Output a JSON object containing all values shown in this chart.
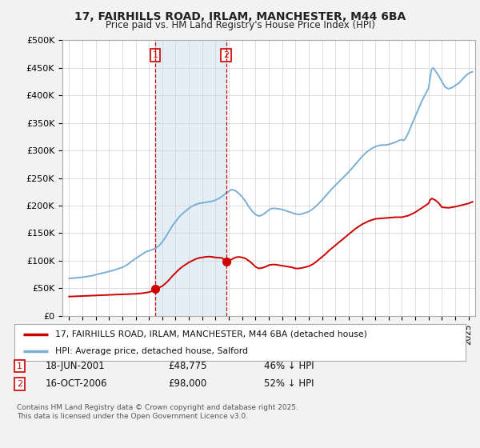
{
  "title1": "17, FAIRHILLS ROAD, IRLAM, MANCHESTER, M44 6BA",
  "title2": "Price paid vs. HM Land Registry's House Price Index (HPI)",
  "ylabel_ticks": [
    "£0",
    "£50K",
    "£100K",
    "£150K",
    "£200K",
    "£250K",
    "£300K",
    "£350K",
    "£400K",
    "£450K",
    "£500K"
  ],
  "ytick_vals": [
    0,
    50000,
    100000,
    150000,
    200000,
    250000,
    300000,
    350000,
    400000,
    450000,
    500000
  ],
  "ylim": [
    0,
    500000
  ],
  "xlim_start": 1994.5,
  "xlim_end": 2025.5,
  "property_color": "#cc0000",
  "hpi_color": "#7ab0d4",
  "shade_color": "#d8e8f5",
  "transaction1_x": 2001.46,
  "transaction1_y": 48775,
  "transaction2_x": 2006.79,
  "transaction2_y": 98000,
  "legend_property": "17, FAIRHILLS ROAD, IRLAM, MANCHESTER, M44 6BA (detached house)",
  "legend_hpi": "HPI: Average price, detached house, Salford",
  "copyright": "Contains HM Land Registry data © Crown copyright and database right 2025.\nThis data is licensed under the Open Government Licence v3.0.",
  "background_color": "#f2f2f2",
  "plot_bg_color": "#ffffff",
  "hpi_data": [
    [
      1995.0,
      68000
    ],
    [
      1995.1,
      68200
    ],
    [
      1995.2,
      68300
    ],
    [
      1995.3,
      68400
    ],
    [
      1995.5,
      69000
    ],
    [
      1995.75,
      69500
    ],
    [
      1996.0,
      70000
    ],
    [
      1996.25,
      71000
    ],
    [
      1996.5,
      72000
    ],
    [
      1996.75,
      73000
    ],
    [
      1997.0,
      74500
    ],
    [
      1997.25,
      76000
    ],
    [
      1997.5,
      77500
    ],
    [
      1997.75,
      79000
    ],
    [
      1998.0,
      80500
    ],
    [
      1998.25,
      82000
    ],
    [
      1998.5,
      84000
    ],
    [
      1998.75,
      86000
    ],
    [
      1999.0,
      88000
    ],
    [
      1999.25,
      91000
    ],
    [
      1999.5,
      95000
    ],
    [
      1999.75,
      100000
    ],
    [
      2000.0,
      104000
    ],
    [
      2000.25,
      108000
    ],
    [
      2000.5,
      112000
    ],
    [
      2000.75,
      116000
    ],
    [
      2001.0,
      118000
    ],
    [
      2001.25,
      120000
    ],
    [
      2001.5,
      123000
    ],
    [
      2001.75,
      127000
    ],
    [
      2002.0,
      134000
    ],
    [
      2002.25,
      143000
    ],
    [
      2002.5,
      153000
    ],
    [
      2002.75,
      163000
    ],
    [
      2003.0,
      171000
    ],
    [
      2003.25,
      179000
    ],
    [
      2003.5,
      185000
    ],
    [
      2003.75,
      190000
    ],
    [
      2004.0,
      195000
    ],
    [
      2004.25,
      199000
    ],
    [
      2004.5,
      202000
    ],
    [
      2004.75,
      204000
    ],
    [
      2005.0,
      205000
    ],
    [
      2005.25,
      206000
    ],
    [
      2005.5,
      207000
    ],
    [
      2005.75,
      208000
    ],
    [
      2006.0,
      210000
    ],
    [
      2006.25,
      213000
    ],
    [
      2006.5,
      217000
    ],
    [
      2006.75,
      222000
    ],
    [
      2007.0,
      226000
    ],
    [
      2007.1,
      228000
    ],
    [
      2007.25,
      229000
    ],
    [
      2007.5,
      227000
    ],
    [
      2007.75,
      222000
    ],
    [
      2008.0,
      216000
    ],
    [
      2008.25,
      208000
    ],
    [
      2008.5,
      198000
    ],
    [
      2008.75,
      190000
    ],
    [
      2009.0,
      184000
    ],
    [
      2009.25,
      181000
    ],
    [
      2009.5,
      183000
    ],
    [
      2009.75,
      187000
    ],
    [
      2010.0,
      192000
    ],
    [
      2010.25,
      195000
    ],
    [
      2010.5,
      195000
    ],
    [
      2010.75,
      194000
    ],
    [
      2011.0,
      193000
    ],
    [
      2011.25,
      191000
    ],
    [
      2011.5,
      189000
    ],
    [
      2011.75,
      187000
    ],
    [
      2012.0,
      185000
    ],
    [
      2012.25,
      184000
    ],
    [
      2012.5,
      185000
    ],
    [
      2012.75,
      187000
    ],
    [
      2013.0,
      189000
    ],
    [
      2013.25,
      193000
    ],
    [
      2013.5,
      198000
    ],
    [
      2013.75,
      204000
    ],
    [
      2014.0,
      210000
    ],
    [
      2014.25,
      217000
    ],
    [
      2014.5,
      224000
    ],
    [
      2014.75,
      231000
    ],
    [
      2015.0,
      237000
    ],
    [
      2015.25,
      243000
    ],
    [
      2015.5,
      249000
    ],
    [
      2015.75,
      255000
    ],
    [
      2016.0,
      261000
    ],
    [
      2016.25,
      268000
    ],
    [
      2016.5,
      275000
    ],
    [
      2016.75,
      282000
    ],
    [
      2017.0,
      289000
    ],
    [
      2017.25,
      295000
    ],
    [
      2017.5,
      300000
    ],
    [
      2017.75,
      304000
    ],
    [
      2018.0,
      307000
    ],
    [
      2018.25,
      309000
    ],
    [
      2018.5,
      310000
    ],
    [
      2018.75,
      310000
    ],
    [
      2019.0,
      311000
    ],
    [
      2019.25,
      313000
    ],
    [
      2019.5,
      315000
    ],
    [
      2019.75,
      318000
    ],
    [
      2020.0,
      320000
    ],
    [
      2020.1,
      318000
    ],
    [
      2020.25,
      321000
    ],
    [
      2020.5,
      333000
    ],
    [
      2020.75,
      348000
    ],
    [
      2021.0,
      362000
    ],
    [
      2021.25,
      376000
    ],
    [
      2021.5,
      390000
    ],
    [
      2021.75,
      402000
    ],
    [
      2022.0,
      413000
    ],
    [
      2022.1,
      430000
    ],
    [
      2022.2,
      445000
    ],
    [
      2022.25,
      448000
    ],
    [
      2022.35,
      450000
    ],
    [
      2022.5,
      445000
    ],
    [
      2022.75,
      436000
    ],
    [
      2023.0,
      425000
    ],
    [
      2023.25,
      415000
    ],
    [
      2023.5,
      412000
    ],
    [
      2023.75,
      414000
    ],
    [
      2024.0,
      418000
    ],
    [
      2024.25,
      422000
    ],
    [
      2024.5,
      428000
    ],
    [
      2024.75,
      435000
    ],
    [
      2025.0,
      440000
    ],
    [
      2025.3,
      443000
    ]
  ],
  "property_data": [
    [
      1995.0,
      35000
    ],
    [
      1995.5,
      35500
    ],
    [
      1996.0,
      36000
    ],
    [
      1996.5,
      36500
    ],
    [
      1997.0,
      37000
    ],
    [
      1997.5,
      37500
    ],
    [
      1998.0,
      38000
    ],
    [
      1998.5,
      38500
    ],
    [
      1999.0,
      39000
    ],
    [
      1999.5,
      39500
    ],
    [
      2000.0,
      40000
    ],
    [
      2000.25,
      40500
    ],
    [
      2000.5,
      41000
    ],
    [
      2000.75,
      42000
    ],
    [
      2001.0,
      43000
    ],
    [
      2001.25,
      45000
    ],
    [
      2001.46,
      48775
    ],
    [
      2001.5,
      49500
    ],
    [
      2001.75,
      51000
    ],
    [
      2002.0,
      54000
    ],
    [
      2002.25,
      59000
    ],
    [
      2002.5,
      65000
    ],
    [
      2002.75,
      72000
    ],
    [
      2003.0,
      78000
    ],
    [
      2003.25,
      84000
    ],
    [
      2003.5,
      89000
    ],
    [
      2003.75,
      93000
    ],
    [
      2004.0,
      97000
    ],
    [
      2004.25,
      100000
    ],
    [
      2004.5,
      103000
    ],
    [
      2004.75,
      105000
    ],
    [
      2005.0,
      106000
    ],
    [
      2005.25,
      107000
    ],
    [
      2005.5,
      107500
    ],
    [
      2005.75,
      107000
    ],
    [
      2006.0,
      106000
    ],
    [
      2006.25,
      105500
    ],
    [
      2006.5,
      105000
    ],
    [
      2006.79,
      98000
    ],
    [
      2007.0,
      100000
    ],
    [
      2007.25,
      103000
    ],
    [
      2007.5,
      106000
    ],
    [
      2007.75,
      107000
    ],
    [
      2008.0,
      106000
    ],
    [
      2008.25,
      104000
    ],
    [
      2008.5,
      100000
    ],
    [
      2008.75,
      95000
    ],
    [
      2009.0,
      89000
    ],
    [
      2009.25,
      86000
    ],
    [
      2009.5,
      87000
    ],
    [
      2009.75,
      89000
    ],
    [
      2010.0,
      92000
    ],
    [
      2010.25,
      93000
    ],
    [
      2010.5,
      93000
    ],
    [
      2010.75,
      92000
    ],
    [
      2011.0,
      91000
    ],
    [
      2011.25,
      90000
    ],
    [
      2011.5,
      89000
    ],
    [
      2011.75,
      88000
    ],
    [
      2012.0,
      86000
    ],
    [
      2012.25,
      86000
    ],
    [
      2012.5,
      87000
    ],
    [
      2012.75,
      88500
    ],
    [
      2013.0,
      90000
    ],
    [
      2013.25,
      93000
    ],
    [
      2013.5,
      97000
    ],
    [
      2013.75,
      102000
    ],
    [
      2014.0,
      107000
    ],
    [
      2014.25,
      112000
    ],
    [
      2014.5,
      118000
    ],
    [
      2014.75,
      123000
    ],
    [
      2015.0,
      128000
    ],
    [
      2015.25,
      133000
    ],
    [
      2015.5,
      138000
    ],
    [
      2015.75,
      143000
    ],
    [
      2016.0,
      148000
    ],
    [
      2016.25,
      153000
    ],
    [
      2016.5,
      158000
    ],
    [
      2016.75,
      162000
    ],
    [
      2017.0,
      166000
    ],
    [
      2017.25,
      169000
    ],
    [
      2017.5,
      172000
    ],
    [
      2017.75,
      174000
    ],
    [
      2018.0,
      176000
    ],
    [
      2018.5,
      177000
    ],
    [
      2019.0,
      178000
    ],
    [
      2019.5,
      179000
    ],
    [
      2020.0,
      179000
    ],
    [
      2020.5,
      182000
    ],
    [
      2021.0,
      188000
    ],
    [
      2021.5,
      196000
    ],
    [
      2022.0,
      204000
    ],
    [
      2022.1,
      210000
    ],
    [
      2022.25,
      213000
    ],
    [
      2022.5,
      210000
    ],
    [
      2022.75,
      205000
    ],
    [
      2023.0,
      197000
    ],
    [
      2023.5,
      196000
    ],
    [
      2024.0,
      198000
    ],
    [
      2024.5,
      201000
    ],
    [
      2025.0,
      204000
    ],
    [
      2025.3,
      207000
    ]
  ]
}
